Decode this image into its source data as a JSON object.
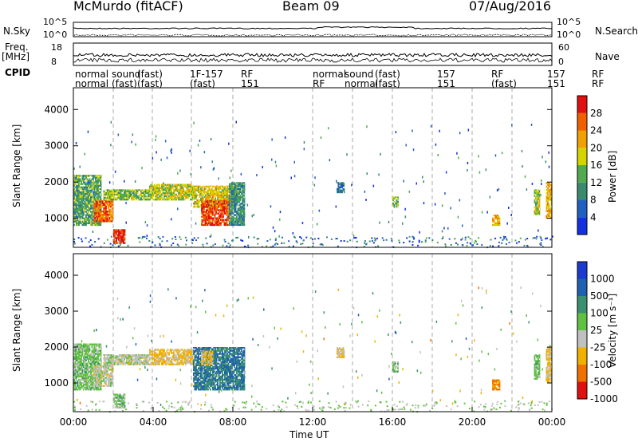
{
  "header": {
    "station": "McMurdo (fitACF)",
    "beam": "Beam 09",
    "date": "07/Aug/2016"
  },
  "top_strips": {
    "nsky_label": "N.Sky",
    "nsearch_label": "N.Search",
    "noise_ticks": [
      "10^5",
      "10^0"
    ],
    "freq_label_top": "Freq.",
    "freq_label_unit": "[MHz]",
    "freq_ticks": [
      "18",
      "8"
    ],
    "nave_label": "Nave",
    "nave_ticks": [
      "60",
      "0"
    ],
    "cpid_label": "CPID",
    "cpid_row1": [
      "normal",
      "sound",
      "(fast)",
      "1F-157",
      "RF",
      "normal",
      "sound",
      "(fast)",
      "157",
      "RF",
      "157",
      "RF"
    ],
    "cpid_row2": [
      "normal",
      "(fast)",
      "(fast)",
      "(fast)",
      "151",
      "RF",
      "normal",
      "(fast)",
      "151",
      "(fast)",
      "151",
      "RF"
    ]
  },
  "axes": {
    "ylabel": "Slant Range [km]",
    "xlabel": "Time UT",
    "x_ticks": [
      "00:00",
      "04:00",
      "08:00",
      "12:00",
      "16:00",
      "20:00",
      "00:00"
    ],
    "y_ticks": [
      "1000",
      "2000",
      "3000",
      "4000"
    ]
  },
  "colorbars": {
    "power": {
      "label": "Power [dB]",
      "ticks": [
        "4",
        "8",
        "12",
        "16",
        "20",
        "24",
        "28"
      ],
      "colors": [
        "#1430e0",
        "#2060c0",
        "#3a8a70",
        "#4faa50",
        "#d4d400",
        "#f0a000",
        "#f06000",
        "#e01010"
      ]
    },
    "velocity": {
      "label": "Velocity [m s⁻¹]",
      "ticks": [
        "1000",
        "500",
        "100",
        "25",
        "-25",
        "-100",
        "-500",
        "-1000"
      ],
      "colors": [
        "#1a3ad0",
        "#2060b0",
        "#3a9070",
        "#60c040",
        "#c0c0c0",
        "#f0b000",
        "#f07000",
        "#e01010"
      ]
    }
  },
  "chart_data": [
    {
      "type": "heatmap",
      "title": "Power",
      "xlabel": "Time UT",
      "ylabel": "Slant Range [km]",
      "xlim": [
        0,
        24
      ],
      "ylim": [
        200,
        4600
      ],
      "x_unit": "hours UT",
      "colorbar_label": "Power [dB]",
      "clim": [
        0,
        30
      ],
      "regions": [
        {
          "t0": 0.0,
          "t1": 1.4,
          "r0": 800,
          "r1": 2200,
          "value": 12
        },
        {
          "t0": 1.0,
          "t1": 2.0,
          "r0": 900,
          "r1": 1500,
          "value": 24
        },
        {
          "t0": 1.5,
          "t1": 3.8,
          "r0": 1500,
          "r1": 1800,
          "value": 14
        },
        {
          "t0": 2.0,
          "t1": 2.6,
          "r0": 300,
          "r1": 700,
          "value": 28
        },
        {
          "t0": 3.8,
          "t1": 6.0,
          "r0": 1500,
          "r1": 1950,
          "value": 16
        },
        {
          "t0": 6.0,
          "t1": 8.2,
          "r0": 1300,
          "r1": 1900,
          "value": 18
        },
        {
          "t0": 6.4,
          "t1": 7.8,
          "r0": 800,
          "r1": 1500,
          "value": 26
        },
        {
          "t0": 7.8,
          "t1": 8.6,
          "r0": 800,
          "r1": 2000,
          "value": 10
        },
        {
          "t0": 13.2,
          "t1": 13.6,
          "r0": 1700,
          "r1": 2000,
          "value": 8
        },
        {
          "t0": 16.0,
          "t1": 16.3,
          "r0": 1300,
          "r1": 1600,
          "value": 12
        },
        {
          "t0": 21.0,
          "t1": 21.4,
          "r0": 800,
          "r1": 1100,
          "value": 20
        },
        {
          "t0": 23.1,
          "t1": 23.4,
          "r0": 1100,
          "r1": 1800,
          "value": 16
        },
        {
          "t0": 23.7,
          "t1": 24.0,
          "r0": 1000,
          "r1": 2000,
          "value": 20
        }
      ]
    },
    {
      "type": "heatmap",
      "title": "Velocity",
      "xlabel": "Time UT",
      "ylabel": "Slant Range [km]",
      "xlim": [
        0,
        24
      ],
      "ylim": [
        200,
        4600
      ],
      "x_unit": "hours UT",
      "colorbar_label": "Velocity [m s⁻¹]",
      "clim": [
        -1000,
        1000
      ],
      "regions": [
        {
          "t0": 0.0,
          "t1": 1.4,
          "r0": 800,
          "r1": 2100,
          "value": 100
        },
        {
          "t0": 1.0,
          "t1": 2.0,
          "r0": 900,
          "r1": 1500,
          "value": -100
        },
        {
          "t0": 2.0,
          "t1": 2.6,
          "r0": 300,
          "r1": 700,
          "value": 100
        },
        {
          "t0": 1.5,
          "t1": 3.8,
          "r0": 1500,
          "r1": 1800,
          "value": -100
        },
        {
          "t0": 3.8,
          "t1": 6.0,
          "r0": 1500,
          "r1": 1950,
          "value": -300
        },
        {
          "t0": 6.0,
          "t1": 8.6,
          "r0": 800,
          "r1": 2000,
          "value": 500
        },
        {
          "t0": 6.4,
          "t1": 7.0,
          "r0": 1500,
          "r1": 1900,
          "value": -300
        },
        {
          "t0": 13.2,
          "t1": 13.6,
          "r0": 1700,
          "r1": 2000,
          "value": -300
        },
        {
          "t0": 16.0,
          "t1": 16.3,
          "r0": 1300,
          "r1": 1600,
          "value": 100
        },
        {
          "t0": 21.0,
          "t1": 21.4,
          "r0": 800,
          "r1": 1100,
          "value": -500
        },
        {
          "t0": 23.1,
          "t1": 23.4,
          "r0": 1100,
          "r1": 1800,
          "value": 100
        },
        {
          "t0": 23.7,
          "t1": 24.0,
          "r0": 1000,
          "r1": 2000,
          "value": -300
        }
      ]
    }
  ]
}
